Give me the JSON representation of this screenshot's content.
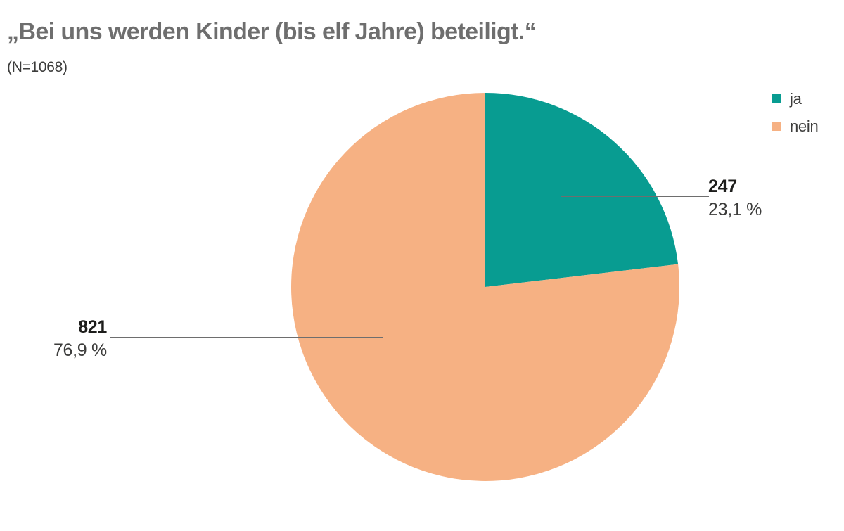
{
  "chart_data": {
    "type": "pie",
    "title": "„Bei uns werden Kinder (bis elf Jahre) beteiligt.“",
    "subtitle": "(N=1068)",
    "n_total": 1068,
    "start_angle_deg": 0,
    "direction": "clockwise",
    "legend_position": "top-right",
    "background_color": "#ffffff",
    "title_color": "#6e6e6e",
    "label_color": "#1d1d1b",
    "leader_line_color": "#6e6e6e",
    "slices": [
      {
        "label": "ja",
        "value": 247,
        "value_label": "247",
        "percent": 23.1,
        "percent_label": "23,1 %",
        "color": "#089c91"
      },
      {
        "label": "nein",
        "value": 821,
        "value_label": "821",
        "percent": 76.9,
        "percent_label": "76,9 %",
        "color": "#f6b183"
      }
    ]
  }
}
